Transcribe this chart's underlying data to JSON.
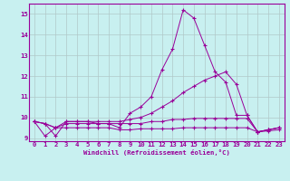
{
  "xlabel": "Windchill (Refroidissement éolien,°C)",
  "background_color": "#c8f0f0",
  "line_color": "#990099",
  "grid_color": "#b0c8c8",
  "xlim": [
    -0.5,
    23.5
  ],
  "ylim": [
    8.85,
    15.5
  ],
  "xticks": [
    0,
    1,
    2,
    3,
    4,
    5,
    6,
    7,
    8,
    9,
    10,
    11,
    12,
    13,
    14,
    15,
    16,
    17,
    18,
    19,
    20,
    21,
    22,
    23
  ],
  "yticks": [
    9,
    10,
    11,
    12,
    13,
    14,
    15
  ],
  "series": [
    [
      9.8,
      9.7,
      9.1,
      9.8,
      9.8,
      9.8,
      9.7,
      9.7,
      9.5,
      10.2,
      10.5,
      11.0,
      12.3,
      13.3,
      15.2,
      14.8,
      13.5,
      12.2,
      11.7,
      10.1,
      10.1,
      9.3,
      9.4,
      9.5
    ],
    [
      9.8,
      9.7,
      9.5,
      9.8,
      9.8,
      9.8,
      9.8,
      9.8,
      9.8,
      9.9,
      10.0,
      10.2,
      10.5,
      10.8,
      11.2,
      11.5,
      11.8,
      12.0,
      12.2,
      11.6,
      10.1,
      9.3,
      9.4,
      9.5
    ],
    [
      9.8,
      9.7,
      9.5,
      9.7,
      9.7,
      9.7,
      9.7,
      9.7,
      9.7,
      9.7,
      9.7,
      9.8,
      9.8,
      9.9,
      9.9,
      9.95,
      9.95,
      9.95,
      9.95,
      9.95,
      9.95,
      9.3,
      9.4,
      9.5
    ],
    [
      9.8,
      9.1,
      9.5,
      9.5,
      9.5,
      9.5,
      9.5,
      9.5,
      9.4,
      9.4,
      9.45,
      9.45,
      9.45,
      9.45,
      9.5,
      9.5,
      9.5,
      9.5,
      9.5,
      9.5,
      9.5,
      9.3,
      9.35,
      9.4
    ]
  ]
}
